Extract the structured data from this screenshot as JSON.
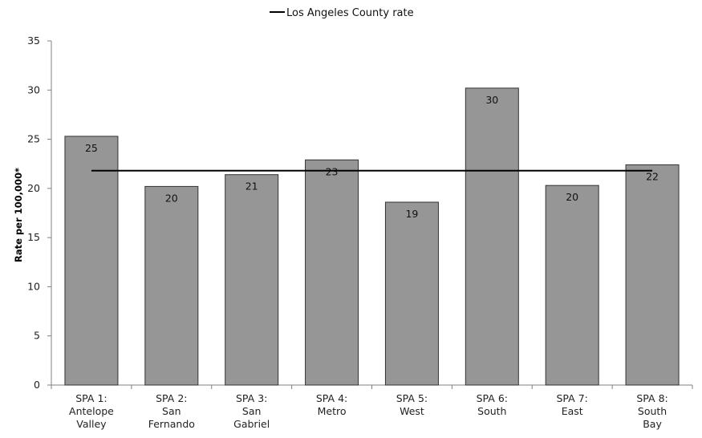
{
  "chart_data": {
    "type": "bar",
    "title": "",
    "xlabel": "",
    "ylabel": "Rate per 100,000*",
    "ylim": [
      0,
      35
    ],
    "yticks": [
      0,
      5,
      10,
      15,
      20,
      25,
      30,
      35
    ],
    "categories": [
      [
        "SPA 1:",
        "Antelope",
        "Valley"
      ],
      [
        "SPA 2:",
        "San",
        "Fernando"
      ],
      [
        "SPA 3:",
        "San",
        "Gabriel"
      ],
      [
        "SPA 4:",
        "Metro"
      ],
      [
        "SPA 5:",
        "West"
      ],
      [
        "SPA 6:",
        "South"
      ],
      [
        "SPA 7:",
        "East"
      ],
      [
        "SPA 8:",
        "South",
        "Bay"
      ]
    ],
    "values": [
      25.3,
      20.2,
      21.4,
      22.9,
      18.6,
      30.2,
      20.3,
      22.4
    ],
    "data_labels": [
      "25",
      "20",
      "21",
      "23",
      "19",
      "30",
      "20",
      "22"
    ],
    "reference_line": {
      "name": "Los Angeles County rate",
      "value": 21.8
    },
    "legend": {
      "position": "top-center",
      "entries": [
        "Los Angeles County rate"
      ]
    },
    "grid": false,
    "colors": {
      "bar_fill": "#969696",
      "bar_stroke": "#333333",
      "line": "#000000",
      "axis": "#808080"
    }
  }
}
